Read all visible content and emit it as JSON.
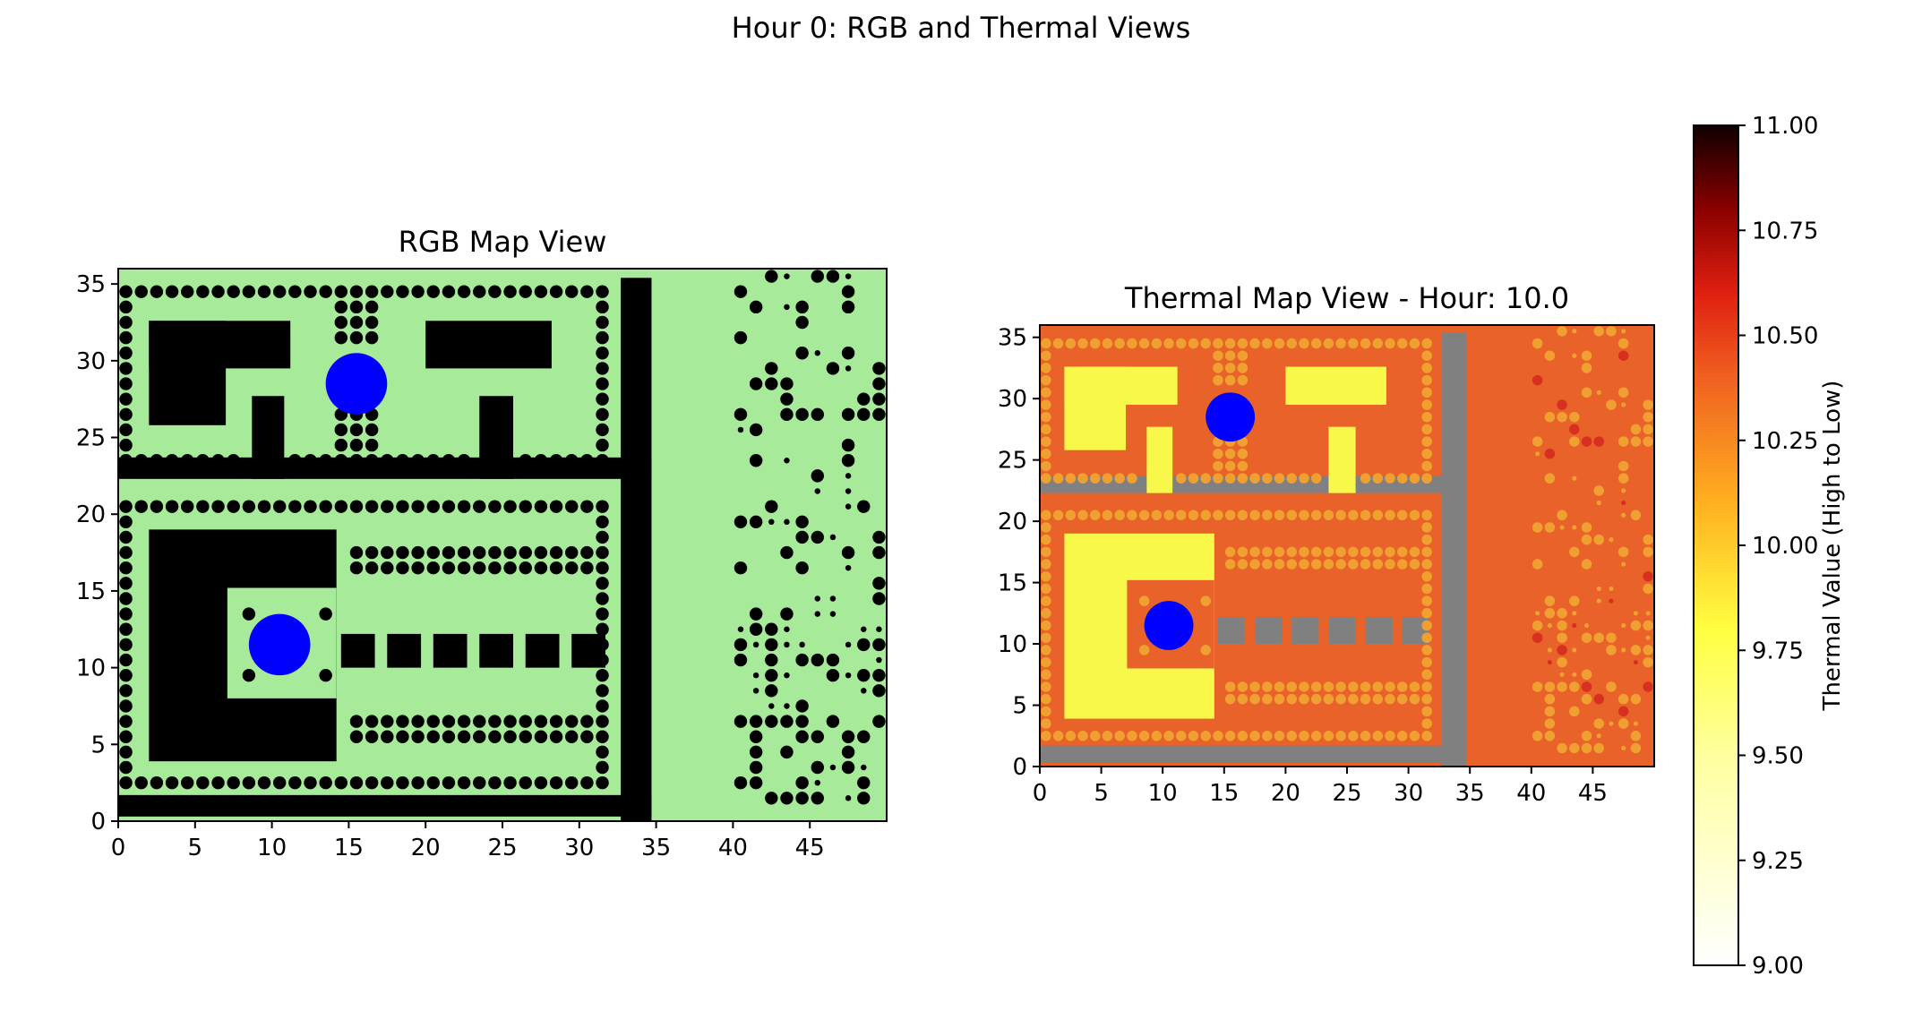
{
  "figure": {
    "suptitle": "Hour 0: RGB and Thermal Views"
  },
  "chart_data": [
    {
      "type": "heatmap",
      "title": "RGB Map View",
      "xlim": [
        0,
        50
      ],
      "ylim": [
        0,
        36
      ],
      "x_ticks": [
        "0",
        "5",
        "10",
        "15",
        "20",
        "25",
        "30",
        "35",
        "40",
        "45"
      ],
      "y_ticks": [
        "0",
        "5",
        "10",
        "15",
        "20",
        "25",
        "30",
        "35"
      ],
      "colors": {
        "background": "#a7eb9a",
        "obstacle": "#000000",
        "target": "#0000ff"
      },
      "targets": [
        {
          "x": 15.5,
          "y": 28.5,
          "r": 2
        },
        {
          "x": 10.5,
          "y": 11.5,
          "r": 2
        }
      ]
    },
    {
      "type": "heatmap",
      "title": "Thermal Map View - Hour: 10.0",
      "xlim": [
        0,
        50
      ],
      "ylim": [
        0,
        36
      ],
      "x_ticks": [
        "0",
        "5",
        "10",
        "15",
        "20",
        "25",
        "30",
        "35",
        "40",
        "45"
      ],
      "y_ticks": [
        "0",
        "5",
        "10",
        "15",
        "20",
        "25",
        "30",
        "35"
      ],
      "colors": {
        "background": "#e8622a",
        "road": "#808080",
        "building": "#f8f84a",
        "vegetation": "#f0a030",
        "hot": "#d83020",
        "target": "#0000ff"
      },
      "colorbar": {
        "label": "Thermal Value (High to Low)",
        "min": 9.0,
        "max": 11.0,
        "ticks": [
          "9.00",
          "9.25",
          "9.50",
          "9.75",
          "10.00",
          "10.25",
          "10.50",
          "10.75",
          "11.00"
        ],
        "colormap": "hot_r"
      },
      "targets": [
        {
          "x": 10.5,
          "y": 11.5,
          "r": 2
        },
        {
          "x": 15.5,
          "y": 28.5,
          "r": 2
        }
      ]
    }
  ],
  "map": {
    "buildings": [
      [
        2,
        25.8,
        5,
        6.8
      ],
      [
        2,
        29.5,
        9.2,
        3.1
      ],
      [
        8.7,
        22.3,
        2.1,
        5.4
      ],
      [
        20,
        29.5,
        8.2,
        3.1
      ],
      [
        23.5,
        22.3,
        2.2,
        5.4
      ],
      [
        2,
        3.9,
        12.2,
        15.1
      ],
      [
        7.1,
        8,
        7.1,
        7.2
      ],
      [
        14.5,
        10,
        2.2,
        2.2
      ],
      [
        17.5,
        10,
        2.2,
        2.2
      ],
      [
        20.5,
        10,
        2.2,
        2.2
      ],
      [
        23.5,
        10,
        2.2,
        2.2
      ],
      [
        26.5,
        10,
        2.2,
        2.2
      ],
      [
        29.5,
        10,
        2.2,
        2.2
      ]
    ],
    "courtyard": [
      7.1,
      8,
      7.1,
      7.2
    ],
    "roads": [
      [
        32.7,
        0,
        2,
        35.4
      ],
      [
        0,
        22.3,
        34.7,
        1.4
      ],
      [
        0,
        0.3,
        34.7,
        1.4
      ]
    ]
  }
}
